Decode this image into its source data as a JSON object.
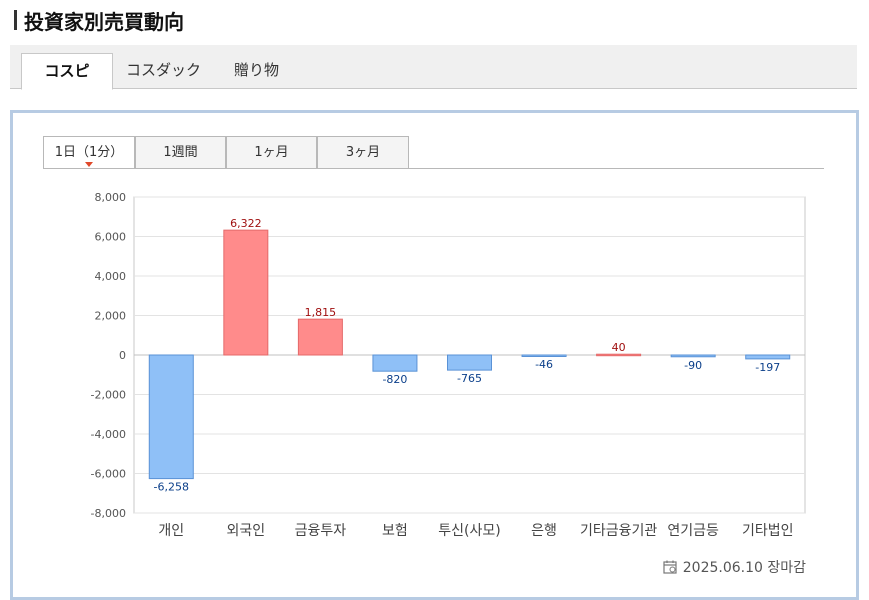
{
  "header": {
    "title": "投資家別売買動向"
  },
  "tabs": [
    {
      "label": "コスピ",
      "active": true
    },
    {
      "label": "コスダック",
      "active": false
    },
    {
      "label": "贈り物",
      "active": false
    }
  ],
  "period_tabs": [
    {
      "label": "1日（1分）",
      "active": true
    },
    {
      "label": "1週間",
      "active": false
    },
    {
      "label": "1ヶ月",
      "active": false
    },
    {
      "label": "3ヶ月",
      "active": false
    }
  ],
  "footer": {
    "date_text": "2025.06.10 장마감",
    "icon": "calendar-icon"
  },
  "colors": {
    "positive": "#ff8b8b",
    "positive_stroke": "#e46a6a",
    "positive_label": "#a01010",
    "negative": "#8fc0f7",
    "negative_stroke": "#5a92d6",
    "negative_label": "#0b3f8a",
    "panel_border": "#b7cbe3"
  },
  "chart_data": {
    "type": "bar",
    "categories": [
      "개인",
      "외국인",
      "금융투자",
      "보험",
      "투신(사모)",
      "은행",
      "기타금융기관",
      "연기금등",
      "기타법인"
    ],
    "values": [
      -6258,
      6322,
      1815,
      -820,
      -765,
      -46,
      40,
      -90,
      -197
    ],
    "value_labels": [
      "-6,258",
      "6,322",
      "1,815",
      "-820",
      "-765",
      "-46",
      "40",
      "-90",
      "-197"
    ],
    "ylim": [
      -8000,
      8000
    ],
    "yticks": [
      8000,
      6000,
      4000,
      2000,
      0,
      -2000,
      -4000,
      -6000,
      -8000
    ],
    "ytick_labels": [
      "8,000",
      "6,000",
      "4,000",
      "2,000",
      "0",
      "-2,000",
      "-4,000",
      "-6,000",
      "-8,000"
    ],
    "grid": true,
    "title": "",
    "xlabel": "",
    "ylabel": ""
  }
}
